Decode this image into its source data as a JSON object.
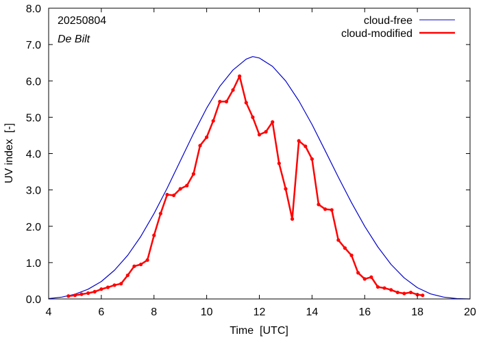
{
  "chart_data": {
    "type": "line",
    "date_label": "20250804",
    "location_label": "De Bilt",
    "xlabel": "Time  [UTC]",
    "ylabel": "UV index  [-]",
    "xlim": [
      4,
      20
    ],
    "ylim": [
      0,
      8
    ],
    "x_ticks": [
      "4",
      "6",
      "8",
      "10",
      "12",
      "14",
      "16",
      "18",
      "20"
    ],
    "y_ticks": [
      "0.0",
      "1.0",
      "2.0",
      "3.0",
      "4.0",
      "5.0",
      "6.0",
      "7.0",
      "8.0"
    ],
    "grid": false,
    "legend_position": "top-right",
    "series": [
      {
        "name": "cloud-free",
        "color": "#0000cc",
        "x": [
          4.0,
          4.5,
          5.0,
          5.5,
          6.0,
          6.5,
          7.0,
          7.5,
          8.0,
          8.5,
          9.0,
          9.5,
          10.0,
          10.5,
          11.0,
          11.5,
          11.75,
          12.0,
          12.5,
          13.0,
          13.5,
          14.0,
          14.5,
          15.0,
          15.5,
          16.0,
          16.5,
          17.0,
          17.5,
          18.0,
          18.5,
          19.0,
          19.5,
          20.0
        ],
        "y": [
          0.01,
          0.05,
          0.13,
          0.27,
          0.48,
          0.79,
          1.2,
          1.72,
          2.35,
          3.05,
          3.8,
          4.55,
          5.25,
          5.85,
          6.3,
          6.6,
          6.67,
          6.63,
          6.4,
          6.0,
          5.45,
          4.8,
          4.08,
          3.35,
          2.65,
          2.0,
          1.43,
          0.95,
          0.58,
          0.31,
          0.14,
          0.05,
          0.01,
          0.0
        ]
      },
      {
        "name": "cloud-modified",
        "color": "#ff0000",
        "x": [
          4.75,
          5.0,
          5.25,
          5.5,
          5.75,
          6.0,
          6.25,
          6.5,
          6.75,
          7.0,
          7.25,
          7.5,
          7.75,
          8.0,
          8.25,
          8.5,
          8.75,
          9.0,
          9.25,
          9.5,
          9.75,
          10.0,
          10.25,
          10.5,
          10.75,
          11.0,
          11.25,
          11.5,
          11.75,
          12.0,
          12.25,
          12.5,
          12.75,
          13.0,
          13.25,
          13.5,
          13.75,
          14.0,
          14.25,
          14.5,
          14.75,
          15.0,
          15.25,
          15.5,
          15.75,
          16.0,
          16.25,
          16.5,
          16.75,
          17.0,
          17.25,
          17.5,
          17.75,
          18.0,
          18.2
        ],
        "y": [
          0.08,
          0.1,
          0.13,
          0.16,
          0.2,
          0.27,
          0.32,
          0.38,
          0.42,
          0.65,
          0.9,
          0.95,
          1.07,
          1.75,
          2.35,
          2.87,
          2.85,
          3.03,
          3.12,
          3.44,
          4.22,
          4.45,
          4.9,
          5.43,
          5.43,
          5.75,
          6.13,
          5.4,
          5.0,
          4.52,
          4.6,
          4.87,
          3.73,
          3.03,
          2.2,
          4.35,
          4.2,
          3.85,
          2.6,
          2.47,
          2.45,
          1.62,
          1.4,
          1.2,
          0.72,
          0.55,
          0.6,
          0.33,
          0.3,
          0.25,
          0.18,
          0.15,
          0.18,
          0.12,
          0.1
        ]
      }
    ]
  }
}
